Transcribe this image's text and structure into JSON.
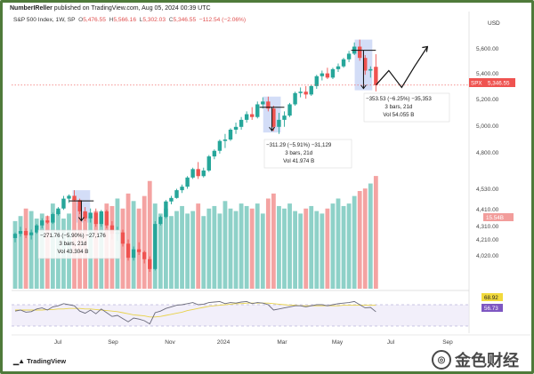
{
  "header": {
    "author": "NumberIReller",
    "published_suffix": " published on TradingView.com, Aug 05, 2024 00:39 UTC"
  },
  "legend": {
    "symbol": "S&P 500 Index, 1W, SP",
    "o_label": "O",
    "o_value": "5,476.55",
    "h_label": "H",
    "h_value": "5,566.16",
    "l_label": "L",
    "l_value": "5,302.03",
    "c_label": "C",
    "c_value": "5,346.55",
    "change": "−112.54 (−2.06%)"
  },
  "price_axis": {
    "currency": "USD",
    "ticks": [
      "5,600.00",
      "5,400.00",
      "5,200.00",
      "5,000.00",
      "4,800.00",
      "4,530.00",
      "4,410.00",
      "4,310.00",
      "4,210.00",
      "4,020.00"
    ],
    "last_price_label": "SPX",
    "last_price_value": "5,346.55",
    "volume_badge": "15.54B"
  },
  "rsi_axis": {
    "upper_value": "68.92",
    "lower_value": "56.73"
  },
  "time_axis": {
    "labels": [
      "Jul",
      "Sep",
      "Nov",
      "2024",
      "Mar",
      "May",
      "Jul",
      "Sep"
    ]
  },
  "measurements": [
    {
      "line1": "−271.76 (−5.90%) −27,176",
      "line2": "3 bars, 21d",
      "line3": "Vol 43.304 B"
    },
    {
      "line1": "−311.29 (−5.91%) −31,129",
      "line2": "3 bars, 21d",
      "line3": "Vol 41.974 B"
    },
    {
      "line1": "−353.53 (−6.25%) −35,353",
      "line2": "3 bars, 21d",
      "line3": "Vol 54.055 B"
    }
  ],
  "branding": {
    "tradingview": "TradingView",
    "watermark": "金色财经"
  },
  "colors": {
    "up": "#26a69a",
    "down": "#ef5350",
    "vol_up": "#8ed1c8",
    "vol_down": "#f4a3a2",
    "highlight": "#c8d4f5",
    "price_tag": "#ef5350",
    "rsi_line": "#6a6a7a",
    "rsi_ma": "#e8d24a"
  },
  "chart_data": {
    "type": "candlestick",
    "title": "S&P 500 Index, 1W, SP",
    "xlabel": "",
    "ylabel": "USD",
    "ylim": [
      3900,
      5680
    ],
    "candles": [
      [
        4260,
        4300,
        4230,
        4290
      ],
      [
        4290,
        4340,
        4270,
        4310
      ],
      [
        4310,
        4330,
        4260,
        4280
      ],
      [
        4280,
        4320,
        4250,
        4300
      ],
      [
        4300,
        4360,
        4290,
        4350
      ],
      [
        4350,
        4400,
        4330,
        4385
      ],
      [
        4385,
        4420,
        4360,
        4370
      ],
      [
        4370,
        4440,
        4360,
        4430
      ],
      [
        4430,
        4480,
        4420,
        4470
      ],
      [
        4470,
        4560,
        4460,
        4540
      ],
      [
        4540,
        4570,
        4510,
        4560
      ],
      [
        4560,
        4600,
        4520,
        4530
      ],
      [
        4530,
        4540,
        4430,
        4450
      ],
      [
        4450,
        4480,
        4380,
        4400
      ],
      [
        4400,
        4470,
        4370,
        4440
      ],
      [
        4440,
        4470,
        4340,
        4360
      ],
      [
        4360,
        4460,
        4340,
        4450
      ],
      [
        4450,
        4460,
        4330,
        4350
      ],
      [
        4350,
        4380,
        4250,
        4290
      ],
      [
        4290,
        4340,
        4240,
        4300
      ],
      [
        4300,
        4320,
        4200,
        4220
      ],
      [
        4220,
        4250,
        4100,
        4120
      ],
      [
        4120,
        4200,
        4100,
        4180
      ],
      [
        4180,
        4230,
        4140,
        4160
      ],
      [
        4160,
        4170,
        4080,
        4110
      ],
      [
        4110,
        4130,
        4020,
        4040
      ],
      [
        4040,
        4380,
        4030,
        4360
      ],
      [
        4360,
        4420,
        4350,
        4410
      ],
      [
        4410,
        4530,
        4400,
        4520
      ],
      [
        4520,
        4560,
        4500,
        4545
      ],
      [
        4545,
        4610,
        4540,
        4600
      ],
      [
        4600,
        4640,
        4580,
        4625
      ],
      [
        4625,
        4700,
        4610,
        4690
      ],
      [
        4690,
        4760,
        4680,
        4750
      ],
      [
        4750,
        4800,
        4680,
        4700
      ],
      [
        4700,
        4760,
        4690,
        4740
      ],
      [
        4740,
        4850,
        4730,
        4840
      ],
      [
        4840,
        4890,
        4820,
        4880
      ],
      [
        4880,
        4960,
        4860,
        4950
      ],
      [
        4950,
        5000,
        4900,
        4960
      ],
      [
        4960,
        5040,
        4950,
        5030
      ],
      [
        5030,
        5080,
        5000,
        5050
      ],
      [
        5050,
        5120,
        5030,
        5100
      ],
      [
        5100,
        5160,
        5080,
        5140
      ],
      [
        5140,
        5190,
        5100,
        5120
      ],
      [
        5120,
        5230,
        5110,
        5210
      ],
      [
        5210,
        5260,
        5180,
        5230
      ],
      [
        5230,
        5265,
        5160,
        5180
      ],
      [
        5180,
        5200,
        5020,
        5050
      ],
      [
        5050,
        5150,
        5000,
        5100
      ],
      [
        5100,
        5160,
        5050,
        5130
      ],
      [
        5130,
        5220,
        5120,
        5210
      ],
      [
        5210,
        5300,
        5200,
        5290
      ],
      [
        5290,
        5330,
        5260,
        5300
      ],
      [
        5300,
        5340,
        5250,
        5280
      ],
      [
        5280,
        5350,
        5270,
        5340
      ],
      [
        5340,
        5420,
        5320,
        5410
      ],
      [
        5410,
        5450,
        5380,
        5430
      ],
      [
        5430,
        5470,
        5390,
        5400
      ],
      [
        5400,
        5470,
        5390,
        5460
      ],
      [
        5460,
        5500,
        5440,
        5480
      ],
      [
        5480,
        5540,
        5470,
        5530
      ],
      [
        5530,
        5590,
        5510,
        5570
      ],
      [
        5570,
        5650,
        5560,
        5620
      ],
      [
        5620,
        5670,
        5520,
        5540
      ],
      [
        5540,
        5560,
        5420,
        5450
      ],
      [
        5450,
        5480,
        5400,
        5460
      ],
      [
        5476.55,
        5566.16,
        5302.03,
        5346.55
      ]
    ],
    "projection": [
      5346.55,
      5450,
      5330,
      5480,
      5620
    ],
    "volume": [
      2.7,
      2.9,
      3.2,
      3.1,
      2.8,
      3.0,
      2.9,
      3.4,
      3.1,
      2.8,
      3.0,
      3.6,
      3.3,
      3.0,
      2.9,
      3.1,
      3.0,
      3.4,
      3.3,
      3.6,
      3.2,
      3.8,
      3.5,
      3.2,
      3.7,
      4.3,
      3.4,
      3.0,
      3.2,
      2.9,
      3.1,
      3.3,
      3.0,
      3.1,
      3.4,
      2.9,
      3.2,
      3.3,
      3.0,
      3.5,
      3.2,
      3.1,
      3.4,
      3.3,
      3.2,
      3.4,
      3.0,
      3.6,
      3.8,
      3.3,
      3.2,
      3.4,
      3.1,
      3.0,
      3.2,
      3.3,
      3.1,
      3.0,
      3.2,
      3.4,
      3.6,
      3.3,
      3.4,
      3.7,
      3.9,
      4.0,
      4.2,
      4.5
    ],
    "rsi": [
      58,
      60,
      56,
      57,
      62,
      64,
      60,
      66,
      68,
      72,
      70,
      68,
      58,
      54,
      60,
      53,
      62,
      55,
      48,
      50,
      44,
      38,
      45,
      43,
      40,
      34,
      55,
      58,
      63,
      66,
      69,
      70,
      72,
      74,
      70,
      71,
      74,
      75,
      76,
      72,
      74,
      73,
      75,
      76,
      72,
      74,
      73,
      70,
      60,
      62,
      64,
      66,
      68,
      68,
      66,
      68,
      70,
      70,
      68,
      70,
      72,
      73,
      74,
      76,
      70,
      64,
      65,
      56.73
    ],
    "rsi_ma": [
      60,
      60,
      60,
      60,
      60,
      60,
      61,
      61,
      62,
      62,
      63,
      63,
      63,
      62,
      62,
      61,
      60,
      59,
      58,
      57,
      55,
      53,
      51,
      50,
      49,
      47,
      47,
      48,
      50,
      52,
      54,
      56,
      59,
      61,
      63,
      65,
      67,
      68,
      69,
      70,
      71,
      72,
      72,
      73,
      73,
      73,
      73,
      73,
      72,
      71,
      70,
      69,
      69,
      68,
      68,
      68,
      68,
      68,
      68,
      68,
      68,
      69,
      69,
      69,
      69,
      69,
      69,
      68.92
    ],
    "time_labels": [
      "Jul",
      "Sep",
      "Nov",
      "2024",
      "Mar",
      "May",
      "Jul",
      "Sep"
    ],
    "annotations": [
      {
        "text": "−271.76 (−5.90%) −27,176",
        "bars": 3,
        "days": 21,
        "volume": "43.304 B"
      },
      {
        "text": "−311.29 (−5.91%) −31,129",
        "bars": 3,
        "days": 21,
        "volume": "41.974 B"
      },
      {
        "text": "−353.53 (−6.25%) −35,353",
        "bars": 3,
        "days": 21,
        "volume": "54.055 B"
      }
    ]
  }
}
